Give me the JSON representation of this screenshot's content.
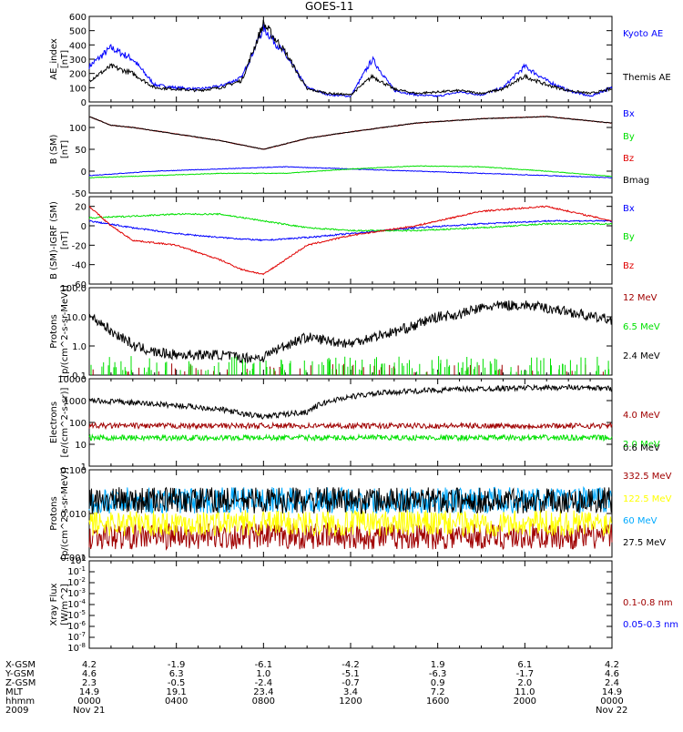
{
  "title": "GOES-11",
  "colors": {
    "black": "#000000",
    "blue": "#0000ff",
    "green": "#00e000",
    "red": "#e00000",
    "darkred": "#a00000",
    "yellow": "#ffff00",
    "cyan": "#00aaff"
  },
  "chart_data": [
    {
      "type": "line",
      "panel": "ae",
      "ylabel": "AE_index\n[nT]",
      "ylim": [
        0,
        600
      ],
      "yticks": [
        "600",
        "500",
        "400",
        "300",
        "200",
        "100",
        "0"
      ],
      "grid": false,
      "series": [
        {
          "name": "Kyoto AE",
          "color": "#0000ff",
          "x": [
            0,
            1,
            2,
            3,
            4,
            5,
            6,
            7,
            8,
            9,
            10,
            11,
            12,
            13,
            14,
            15,
            16,
            17,
            18,
            19,
            20,
            21,
            22,
            23,
            24
          ],
          "y": [
            250,
            380,
            300,
            120,
            100,
            90,
            110,
            170,
            520,
            330,
            100,
            50,
            40,
            300,
            80,
            50,
            40,
            70,
            50,
            100,
            250,
            150,
            80,
            40,
            100
          ]
        },
        {
          "name": "Themis AE",
          "color": "#000000",
          "x": [
            0,
            1,
            2,
            3,
            4,
            5,
            6,
            7,
            8,
            9,
            10,
            11,
            12,
            13,
            14,
            15,
            16,
            17,
            18,
            19,
            20,
            21,
            22,
            23,
            24
          ],
          "y": [
            150,
            250,
            200,
            100,
            90,
            80,
            100,
            150,
            550,
            350,
            90,
            60,
            50,
            180,
            90,
            60,
            70,
            80,
            60,
            90,
            180,
            120,
            80,
            60,
            90
          ]
        }
      ]
    },
    {
      "type": "line",
      "panel": "b",
      "ylabel": "B (SM)\n[nT]",
      "ylim": [
        -50,
        150
      ],
      "yticks": [
        "100",
        "50",
        "0",
        "-50"
      ],
      "series": [
        {
          "name": "Bx",
          "color": "#0000ff",
          "x": [
            0,
            3,
            6,
            9,
            12,
            15,
            18,
            21,
            24
          ],
          "y": [
            -10,
            0,
            5,
            10,
            5,
            0,
            -5,
            -10,
            -15
          ]
        },
        {
          "name": "By",
          "color": "#00e000",
          "x": [
            0,
            3,
            6,
            9,
            12,
            15,
            18,
            21,
            24
          ],
          "y": [
            -15,
            -10,
            -5,
            -5,
            5,
            12,
            10,
            0,
            -12
          ]
        },
        {
          "name": "Bz",
          "color": "#e00000",
          "x": [
            0,
            1,
            2,
            4,
            6,
            7,
            8,
            10,
            12,
            15,
            18,
            21,
            24
          ],
          "y": [
            125,
            105,
            100,
            85,
            70,
            60,
            50,
            75,
            90,
            110,
            120,
            125,
            110
          ]
        },
        {
          "name": "Bmag",
          "color": "#000000",
          "x": [
            0,
            1,
            2,
            4,
            6,
            7,
            8,
            10,
            12,
            15,
            18,
            21,
            24
          ],
          "y": [
            125,
            105,
            100,
            85,
            70,
            60,
            50,
            75,
            90,
            110,
            120,
            125,
            110
          ]
        }
      ]
    },
    {
      "type": "line",
      "panel": "db",
      "ylabel": "B (SM)-IGRF (SM)\n[nT]",
      "ylim": [
        -60,
        30
      ],
      "yticks": [
        "20",
        "0",
        "-20",
        "-40",
        "-60"
      ],
      "series": [
        {
          "name": "Bx",
          "color": "#0000ff",
          "x": [
            0,
            2,
            4,
            6,
            8,
            10,
            12,
            15,
            18,
            21,
            24
          ],
          "y": [
            5,
            -2,
            -8,
            -12,
            -15,
            -12,
            -8,
            -2,
            2,
            5,
            5
          ]
        },
        {
          "name": "By",
          "color": "#00e000",
          "x": [
            0,
            2,
            4,
            6,
            8,
            10,
            12,
            15,
            18,
            21,
            24
          ],
          "y": [
            8,
            10,
            12,
            12,
            5,
            -2,
            -5,
            -5,
            -2,
            2,
            2
          ]
        },
        {
          "name": "Bz",
          "color": "#e00000",
          "x": [
            0,
            1,
            2,
            4,
            6,
            7,
            8,
            10,
            12,
            15,
            18,
            21,
            24
          ],
          "y": [
            20,
            0,
            -15,
            -20,
            -35,
            -45,
            -50,
            -20,
            -10,
            0,
            15,
            20,
            5
          ]
        }
      ]
    },
    {
      "type": "line",
      "panel": "protons",
      "ylabel": "Protons\n[p/(cm^2-s-sr-MeV)]",
      "ylim": [
        0.1,
        100
      ],
      "log": true,
      "yticks": [
        "100.0",
        "10.0",
        "1.0",
        "0.1"
      ],
      "series": [
        {
          "name": "12 MeV",
          "color": "#a00000"
        },
        {
          "name": "6.5 MeV",
          "color": "#00e000"
        },
        {
          "name": "2.4 MeV",
          "color": "#000000",
          "x": [
            0,
            1,
            2,
            3,
            4,
            5,
            6,
            7,
            8,
            9,
            10,
            11,
            12,
            13,
            14,
            15,
            16,
            17,
            18,
            19,
            20,
            21,
            22,
            23,
            24
          ],
          "y": [
            10,
            3,
            1,
            0.6,
            0.5,
            0.5,
            0.5,
            0.4,
            0.4,
            1,
            2,
            1.5,
            1.2,
            2,
            3,
            5,
            10,
            12,
            20,
            25,
            25,
            20,
            15,
            10,
            8
          ]
        }
      ]
    },
    {
      "type": "line",
      "panel": "electrons",
      "ylabel": "Electrons\n[e/(cm^2-s-sr)]",
      "ylim": [
        1,
        10000
      ],
      "log": true,
      "yticks": [
        "10000",
        "1000",
        "100",
        "10",
        "1"
      ],
      "series": [
        {
          "name": "4.0 MeV",
          "color": "#a00000",
          "x": [
            0,
            24
          ],
          "y": [
            70,
            70
          ]
        },
        {
          "name": "2.0 MeV",
          "color": "#00e000",
          "x": [
            0,
            24
          ],
          "y": [
            20,
            20
          ]
        },
        {
          "name": "0.6 MeV",
          "color": "#000000",
          "x": [
            0,
            2,
            4,
            6,
            7,
            8,
            10,
            12,
            14,
            16,
            18,
            20,
            22,
            24
          ],
          "y": [
            1000,
            800,
            600,
            400,
            250,
            180,
            300,
            1500,
            2500,
            3000,
            3500,
            3800,
            4000,
            3500
          ]
        }
      ]
    },
    {
      "type": "line",
      "panel": "hiprotons",
      "ylabel": "Protons\n[p/(cm^2-s-sr-MeV)]",
      "ylim": [
        0.001,
        0.1
      ],
      "log": true,
      "yticks": [
        "0.100",
        "0.010",
        "0.001"
      ],
      "series": [
        {
          "name": "332.5 MeV",
          "color": "#a00000",
          "x": [
            0,
            24
          ],
          "y": [
            0.003,
            0.003
          ]
        },
        {
          "name": "122.5 MeV",
          "color": "#ffff00",
          "x": [
            0,
            24
          ],
          "y": [
            0.006,
            0.006
          ]
        },
        {
          "name": "60 MeV",
          "color": "#00aaff",
          "x": [
            0,
            24
          ],
          "y": [
            0.02,
            0.02
          ]
        },
        {
          "name": "27.5 MeV",
          "color": "#000000",
          "x": [
            0,
            24
          ],
          "y": [
            0.02,
            0.02
          ]
        }
      ]
    },
    {
      "type": "line",
      "panel": "xray",
      "ylabel": "Xray Flux\n[W/m^2]",
      "ylim": [
        1e-08,
        1
      ],
      "log": true,
      "yticks": [
        "10^0",
        "10^-1",
        "10^-2",
        "10^-3",
        "10^-4",
        "10^-5",
        "10^-6",
        "10^-7",
        "10^-8"
      ],
      "series": [
        {
          "name": "0.1-0.8 nm",
          "color": "#a00000"
        },
        {
          "name": "0.05-0.3 nm",
          "color": "#0000ff"
        }
      ]
    }
  ],
  "xaxis": {
    "row_labels": [
      "X-GSM",
      "Y-GSM",
      "Z-GSM",
      "MLT",
      "hhmm",
      "2009"
    ],
    "columns": [
      [
        "4.2",
        "4.6",
        "2.3",
        "14.9",
        "0000",
        "Nov 21"
      ],
      [
        "-1.9",
        "6.3",
        "-0.5",
        "19.1",
        "0400",
        ""
      ],
      [
        "-6.1",
        "1.0",
        "-2.4",
        "23.4",
        "0800",
        ""
      ],
      [
        "-4.2",
        "-5.1",
        "-0.7",
        "3.4",
        "1200",
        ""
      ],
      [
        "1.9",
        "-6.3",
        "0.9",
        "7.2",
        "1600",
        ""
      ],
      [
        "6.1",
        "-1.7",
        "2.0",
        "11.0",
        "2000",
        ""
      ],
      [
        "4.2",
        "4.6",
        "2.4",
        "14.9",
        "0000",
        "Nov 22"
      ]
    ]
  }
}
